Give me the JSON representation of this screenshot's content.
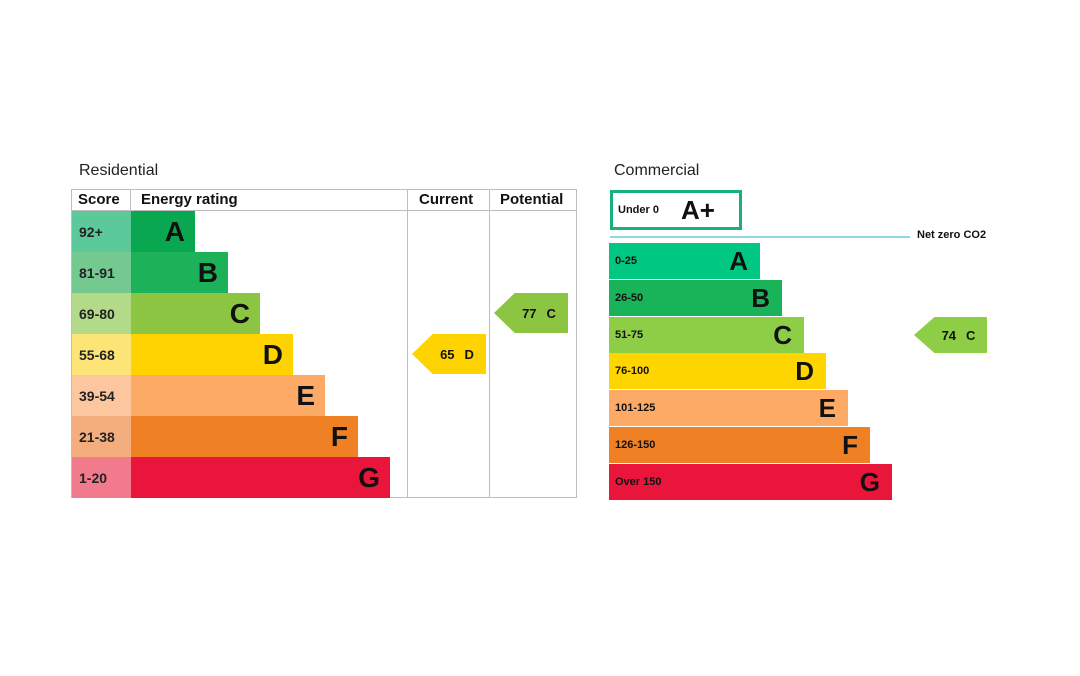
{
  "chart_data": [
    {
      "type": "bar",
      "title": "Residential",
      "headers": {
        "score": "Score",
        "rating": "Energy rating",
        "current": "Current",
        "potential": "Potential"
      },
      "bands": [
        {
          "range": "92+",
          "letter": "A",
          "color": "#08a750",
          "score_color": "#5bc99a",
          "level": 1
        },
        {
          "range": "81-91",
          "letter": "B",
          "color": "#1db25a",
          "score_color": "#73c990",
          "level": 2
        },
        {
          "range": "69-80",
          "letter": "C",
          "color": "#8cc542",
          "score_color": "#b2da88",
          "level": 3
        },
        {
          "range": "55-68",
          "letter": "D",
          "color": "#ffd300",
          "score_color": "#fde476",
          "level": 4
        },
        {
          "range": "39-54",
          "letter": "E",
          "color": "#fcaa65",
          "score_color": "#fcc79f",
          "level": 5
        },
        {
          "range": "21-38",
          "letter": "F",
          "color": "#ef8023",
          "score_color": "#f4ad7c",
          "level": 6
        },
        {
          "range": "1-20",
          "letter": "G",
          "color": "#e9153b",
          "score_color": "#f27a8d",
          "level": 7
        }
      ],
      "current": {
        "score": "65",
        "letter": "D",
        "color": "#ffd300"
      },
      "potential": {
        "score": "77",
        "letter": "C",
        "color": "#8cc542"
      }
    },
    {
      "type": "bar",
      "title": "Commercial",
      "top_band": {
        "range": "Under 0",
        "letter": "A+",
        "color": "#19b07a"
      },
      "net_zero_label": "Net zero CO2",
      "bands": [
        {
          "range": "0-25",
          "letter": "A",
          "color": "#00c781",
          "level": 1
        },
        {
          "range": "26-50",
          "letter": "B",
          "color": "#19b459",
          "level": 2
        },
        {
          "range": "51-75",
          "letter": "C",
          "color": "#8dce46",
          "level": 3
        },
        {
          "range": "76-100",
          "letter": "D",
          "color": "#ffd500",
          "level": 4
        },
        {
          "range": "101-125",
          "letter": "E",
          "color": "#fcaa65",
          "level": 5
        },
        {
          "range": "126-150",
          "letter": "F",
          "color": "#ef8023",
          "level": 6
        },
        {
          "range": "Over 150",
          "letter": "G",
          "color": "#e9153b",
          "level": 7
        }
      ],
      "current": {
        "score": "74",
        "letter": "C",
        "color": "#8dce46"
      }
    }
  ]
}
